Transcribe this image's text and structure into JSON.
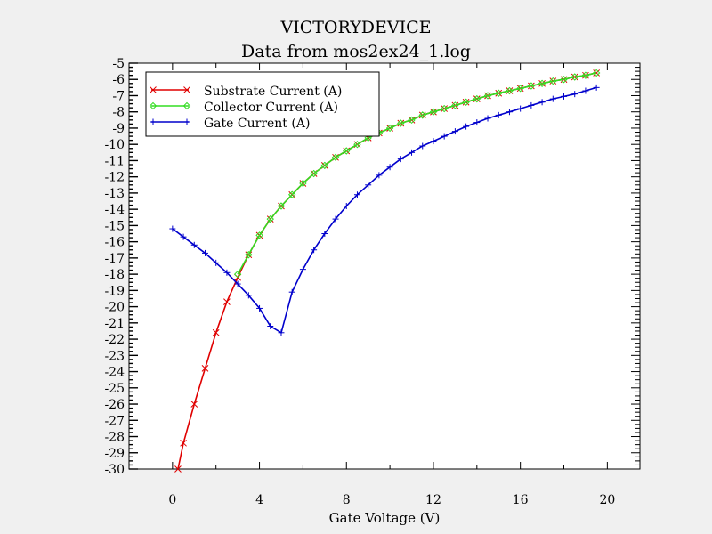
{
  "chart_data": {
    "type": "line",
    "title": "VICTORYDEVICE",
    "subtitle": "Data from mos2ex24_1.log",
    "xlabel": "Gate Voltage (V)",
    "ylabel": "",
    "xlim": [
      -2,
      21.5
    ],
    "ylim": [
      -30,
      -5
    ],
    "xticks": [
      0,
      4,
      8,
      12,
      16,
      20
    ],
    "xtick_labels": [
      "0",
      "4",
      "8",
      "12",
      "16",
      "20"
    ],
    "yticks": [
      -5,
      -6,
      -7,
      -8,
      -9,
      -10,
      -11,
      -12,
      -13,
      -14,
      -15,
      -16,
      -17,
      -18,
      -19,
      -20,
      -21,
      -22,
      -23,
      -24,
      -25,
      -26,
      -27,
      -28,
      -29,
      -30
    ],
    "ytick_labels": [
      "-5",
      "-6",
      "-7",
      "-8",
      "-9",
      "-10",
      "-11",
      "-12",
      "-13",
      "-14",
      "-15",
      "-16",
      "-17",
      "-18",
      "-19",
      "-20",
      "-21",
      "-22",
      "-23",
      "-24",
      "-25",
      "-26",
      "-27",
      "-28",
      "-29",
      "-30"
    ],
    "legend_position": "top-left",
    "grid": false,
    "series": [
      {
        "name": "Substrate Current (A)",
        "color": "#e00000",
        "marker": "x",
        "x": [
          0.25,
          0.5,
          1.0,
          1.5,
          2.0,
          2.5,
          3.0,
          3.5,
          4.0,
          4.5,
          5.0,
          5.5,
          6.0,
          6.5,
          7.0,
          7.5,
          8.0,
          8.5,
          9.0,
          9.5,
          10.0,
          10.5,
          11.0,
          11.5,
          12.0,
          12.5,
          13.0,
          13.5,
          14.0,
          14.5,
          15.0,
          15.5,
          16.0,
          16.5,
          17.0,
          17.5,
          18.0,
          18.5,
          19.0,
          19.5
        ],
        "y": [
          -30.0,
          -28.4,
          -26.0,
          -23.8,
          -21.6,
          -19.7,
          -18.2,
          -16.8,
          -15.6,
          -14.6,
          -13.8,
          -13.1,
          -12.4,
          -11.8,
          -11.3,
          -10.8,
          -10.4,
          -10.0,
          -9.6,
          -9.3,
          -9.0,
          -8.7,
          -8.5,
          -8.2,
          -8.0,
          -7.8,
          -7.6,
          -7.4,
          -7.2,
          -7.0,
          -6.85,
          -6.7,
          -6.55,
          -6.4,
          -6.25,
          -6.1,
          -6.0,
          -5.85,
          -5.75,
          -5.6
        ]
      },
      {
        "name": "Collector Current (A)",
        "color": "#33dd22",
        "marker": "diamond",
        "x": [
          3.0,
          3.5,
          4.0,
          4.5,
          5.0,
          5.5,
          6.0,
          6.5,
          7.0,
          7.5,
          8.0,
          8.5,
          9.0,
          9.5,
          10.0,
          10.5,
          11.0,
          11.5,
          12.0,
          12.5,
          13.0,
          13.5,
          14.0,
          14.5,
          15.0,
          15.5,
          16.0,
          16.5,
          17.0,
          17.5,
          18.0,
          18.5,
          19.0,
          19.5
        ],
        "y": [
          -18.0,
          -16.8,
          -15.6,
          -14.6,
          -13.8,
          -13.1,
          -12.4,
          -11.8,
          -11.3,
          -10.8,
          -10.4,
          -10.0,
          -9.6,
          -9.3,
          -9.0,
          -8.7,
          -8.5,
          -8.2,
          -8.0,
          -7.8,
          -7.6,
          -7.4,
          -7.2,
          -7.0,
          -6.85,
          -6.7,
          -6.55,
          -6.4,
          -6.25,
          -6.1,
          -6.0,
          -5.85,
          -5.75,
          -5.6
        ]
      },
      {
        "name": "Gate Current (A)",
        "color": "#0000cc",
        "marker": "plus",
        "x": [
          0.0,
          0.5,
          1.0,
          1.5,
          2.0,
          2.5,
          3.0,
          3.5,
          4.0,
          4.5,
          5.0,
          5.5,
          6.0,
          6.5,
          7.0,
          7.5,
          8.0,
          8.5,
          9.0,
          9.5,
          10.0,
          10.5,
          11.0,
          11.5,
          12.0,
          12.5,
          13.0,
          13.5,
          14.0,
          14.5,
          15.0,
          15.5,
          16.0,
          16.5,
          17.0,
          17.5,
          18.0,
          18.5,
          19.0,
          19.5
        ],
        "y": [
          -15.2,
          -15.7,
          -16.2,
          -16.7,
          -17.3,
          -17.9,
          -18.6,
          -19.3,
          -20.1,
          -21.2,
          -21.6,
          -19.1,
          -17.7,
          -16.5,
          -15.5,
          -14.6,
          -13.8,
          -13.1,
          -12.5,
          -11.9,
          -11.4,
          -10.9,
          -10.5,
          -10.1,
          -9.8,
          -9.5,
          -9.2,
          -8.9,
          -8.65,
          -8.4,
          -8.2,
          -8.0,
          -7.8,
          -7.6,
          -7.4,
          -7.2,
          -7.05,
          -6.9,
          -6.7,
          -6.5
        ]
      }
    ]
  }
}
